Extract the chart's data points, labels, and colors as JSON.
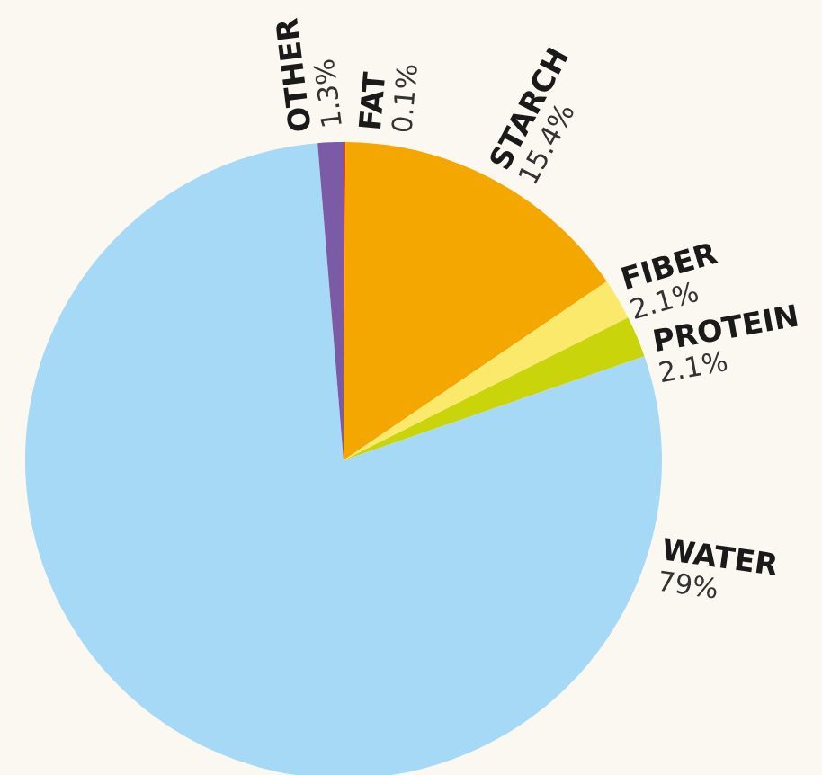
{
  "chart_data": {
    "type": "pie",
    "categories": [
      "FAT",
      "STARCH",
      "FIBER",
      "PROTEIN",
      "WATER",
      "OTHER"
    ],
    "values": [
      0.1,
      15.4,
      2.1,
      2.1,
      79,
      1.3
    ],
    "colors": [
      "#d9412e",
      "#f4a700",
      "#fbe96b",
      "#c9d40a",
      "#a6d9f5",
      "#7b5aa6"
    ],
    "value_labels": [
      "0.1%",
      "15.4%",
      "2.1%",
      "2.1%",
      "79%",
      "1.3%"
    ],
    "legend": false
  }
}
